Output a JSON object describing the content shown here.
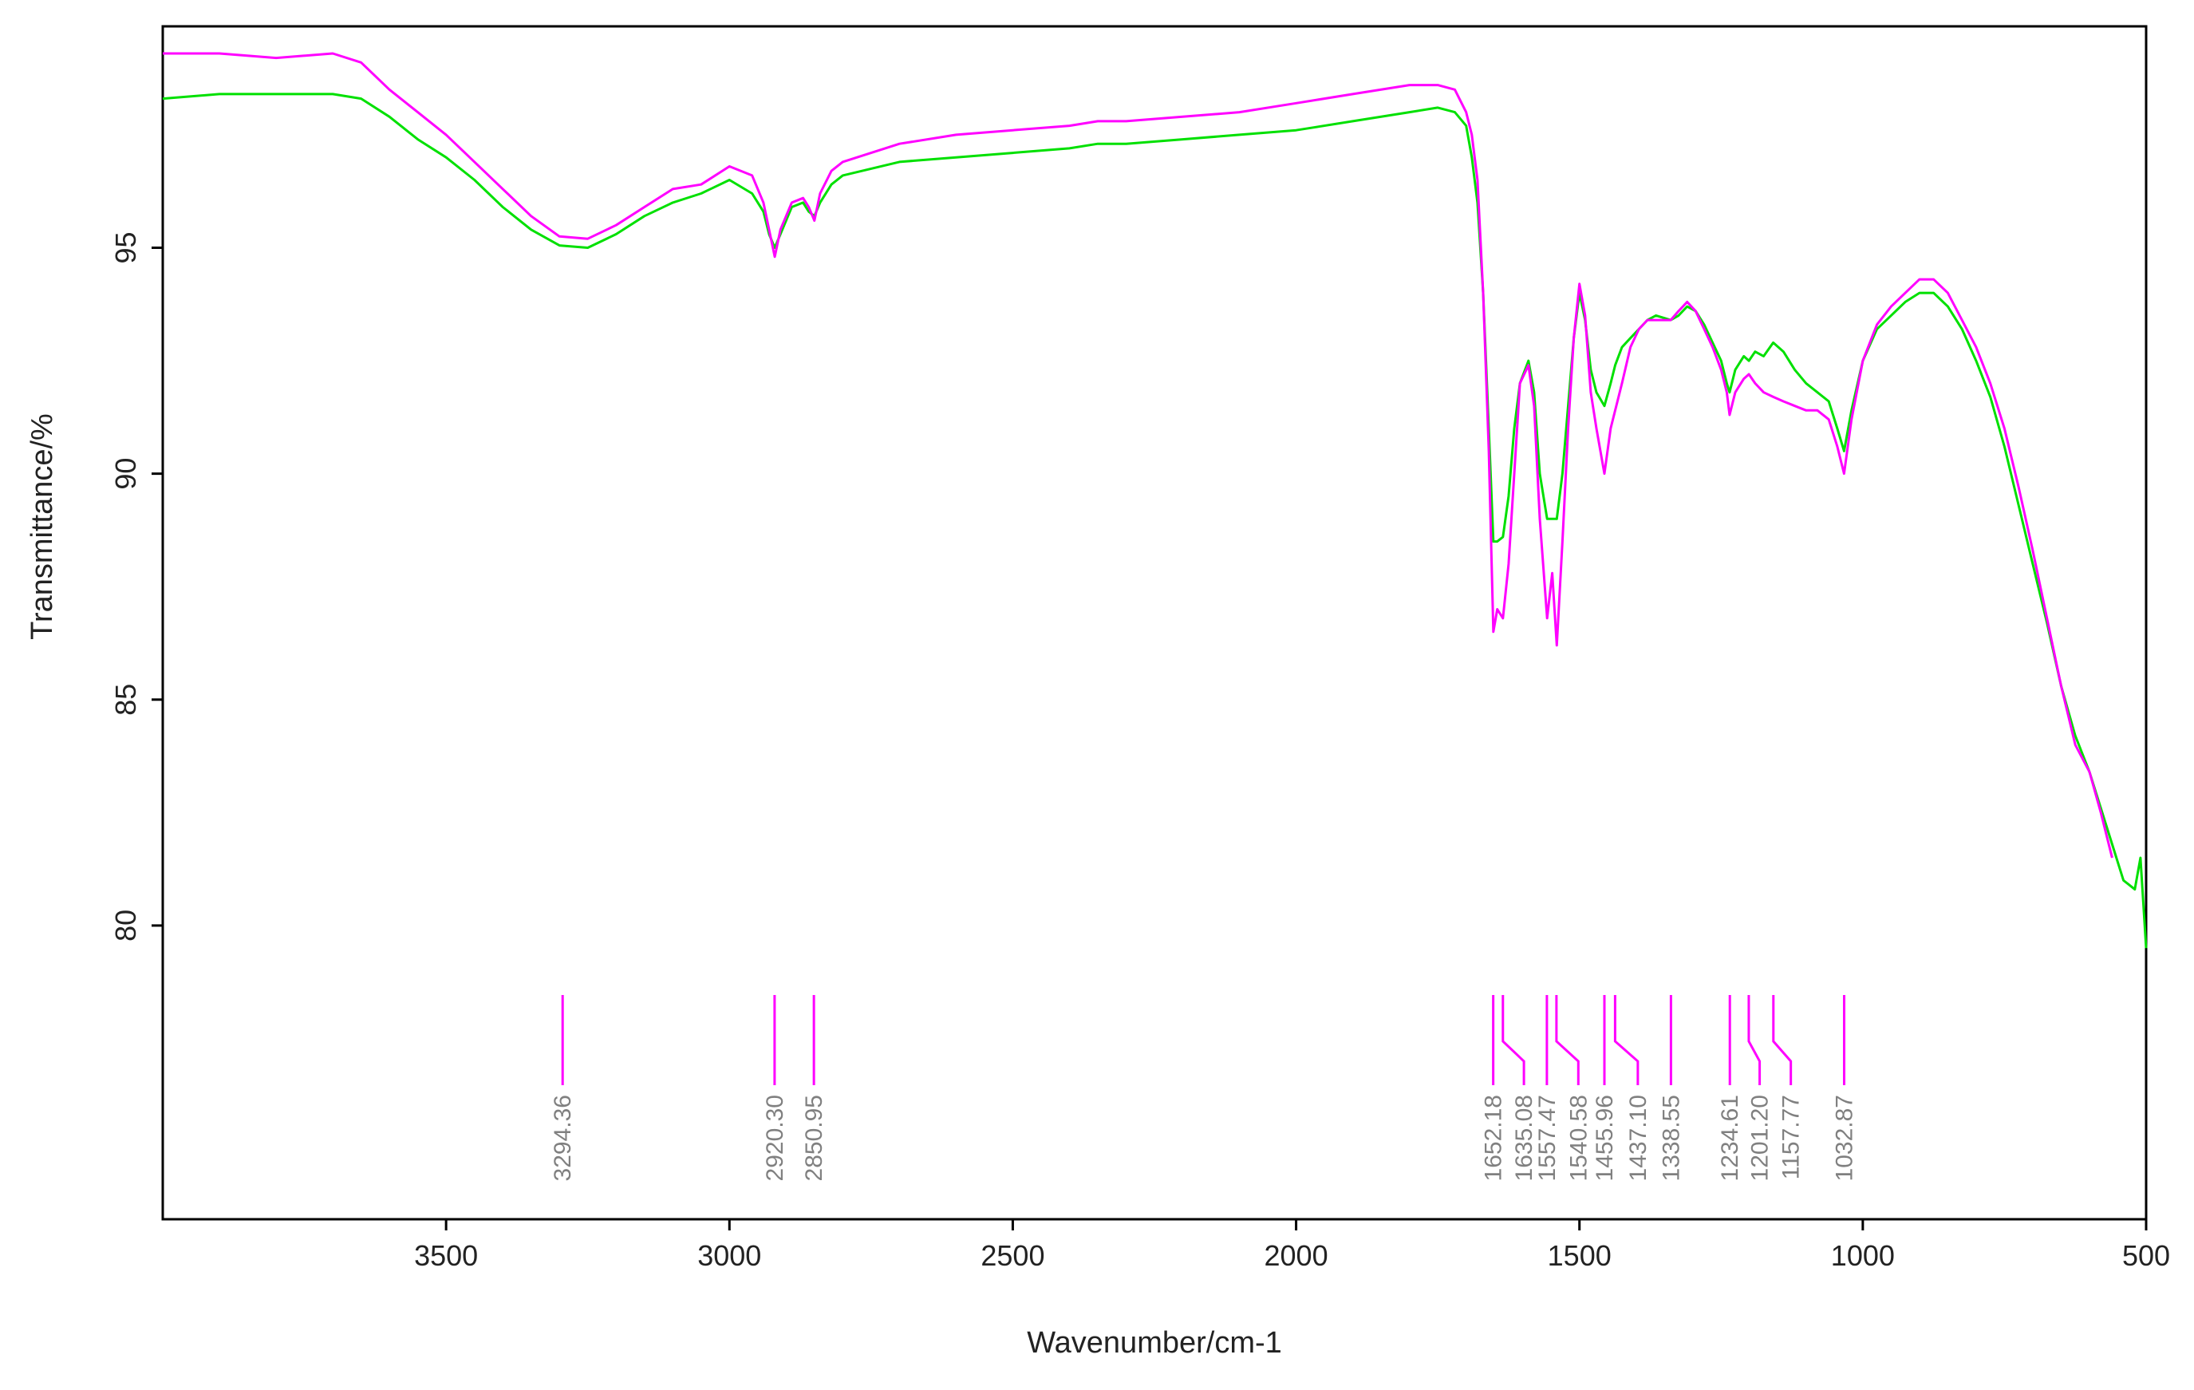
{
  "chart_data": {
    "type": "line",
    "title": "",
    "xlabel": "Wavenumber/cm-1",
    "ylabel": "Transmittance/%",
    "xlim": [
      4000,
      500
    ],
    "ylim": [
      73.5,
      99.9
    ],
    "x_ticks": [
      3500,
      3000,
      2500,
      2000,
      1500,
      1000,
      500
    ],
    "y_ticks": [
      80,
      85,
      90,
      95
    ],
    "grid": false,
    "legend": "none",
    "colors": {
      "series_a": "#ff00ff",
      "series_b": "#00e000",
      "peak_label": "#808080",
      "axis": "#000000"
    },
    "series": [
      {
        "points": [
          [
            4000,
            99.3
          ],
          [
            3900,
            99.3
          ],
          [
            3800,
            99.2
          ],
          [
            3700,
            99.3
          ],
          [
            3650,
            99.1
          ],
          [
            3600,
            98.5
          ],
          [
            3550,
            98.0
          ],
          [
            3500,
            97.5
          ],
          [
            3450,
            96.9
          ],
          [
            3400,
            96.3
          ],
          [
            3350,
            95.7
          ],
          [
            3300,
            95.25
          ],
          [
            3250,
            95.2
          ],
          [
            3200,
            95.5
          ],
          [
            3150,
            95.9
          ],
          [
            3100,
            96.3
          ],
          [
            3050,
            96.4
          ],
          [
            3000,
            96.8
          ],
          [
            2960,
            96.6
          ],
          [
            2940,
            96.0
          ],
          [
            2930,
            95.4
          ],
          [
            2920,
            94.8
          ],
          [
            2910,
            95.4
          ],
          [
            2890,
            96.0
          ],
          [
            2870,
            96.1
          ],
          [
            2860,
            95.9
          ],
          [
            2850,
            95.6
          ],
          [
            2840,
            96.2
          ],
          [
            2820,
            96.7
          ],
          [
            2800,
            96.9
          ],
          [
            2700,
            97.3
          ],
          [
            2600,
            97.5
          ],
          [
            2500,
            97.6
          ],
          [
            2400,
            97.7
          ],
          [
            2350,
            97.8
          ],
          [
            2300,
            97.8
          ],
          [
            2200,
            97.9
          ],
          [
            2100,
            98.0
          ],
          [
            2000,
            98.2
          ],
          [
            1900,
            98.4
          ],
          [
            1800,
            98.6
          ],
          [
            1750,
            98.6
          ],
          [
            1720,
            98.5
          ],
          [
            1700,
            98.0
          ],
          [
            1690,
            97.5
          ],
          [
            1680,
            96.5
          ],
          [
            1670,
            94.0
          ],
          [
            1660,
            90.5
          ],
          [
            1652,
            86.5
          ],
          [
            1645,
            87.0
          ],
          [
            1635,
            86.8
          ],
          [
            1625,
            88.0
          ],
          [
            1615,
            90.0
          ],
          [
            1605,
            92.0
          ],
          [
            1590,
            92.4
          ],
          [
            1580,
            91.5
          ],
          [
            1570,
            89.0
          ],
          [
            1557,
            86.8
          ],
          [
            1548,
            87.8
          ],
          [
            1540,
            86.2
          ],
          [
            1530,
            88.5
          ],
          [
            1520,
            91.0
          ],
          [
            1510,
            93.0
          ],
          [
            1500,
            94.2
          ],
          [
            1490,
            93.5
          ],
          [
            1480,
            91.8
          ],
          [
            1470,
            91.0
          ],
          [
            1456,
            90.0
          ],
          [
            1445,
            91.0
          ],
          [
            1437,
            91.4
          ],
          [
            1425,
            92.0
          ],
          [
            1410,
            92.8
          ],
          [
            1395,
            93.2
          ],
          [
            1380,
            93.4
          ],
          [
            1365,
            93.4
          ],
          [
            1339,
            93.4
          ],
          [
            1325,
            93.6
          ],
          [
            1310,
            93.8
          ],
          [
            1295,
            93.6
          ],
          [
            1280,
            93.2
          ],
          [
            1265,
            92.8
          ],
          [
            1250,
            92.3
          ],
          [
            1240,
            91.8
          ],
          [
            1235,
            91.3
          ],
          [
            1225,
            91.8
          ],
          [
            1210,
            92.1
          ],
          [
            1201,
            92.2
          ],
          [
            1190,
            92.0
          ],
          [
            1175,
            91.8
          ],
          [
            1158,
            91.7
          ],
          [
            1140,
            91.6
          ],
          [
            1120,
            91.5
          ],
          [
            1100,
            91.4
          ],
          [
            1080,
            91.4
          ],
          [
            1060,
            91.2
          ],
          [
            1045,
            90.6
          ],
          [
            1033,
            90.0
          ],
          [
            1020,
            91.2
          ],
          [
            1000,
            92.5
          ],
          [
            975,
            93.3
          ],
          [
            950,
            93.7
          ],
          [
            925,
            94.0
          ],
          [
            900,
            94.3
          ],
          [
            875,
            94.3
          ],
          [
            850,
            94.0
          ],
          [
            825,
            93.4
          ],
          [
            800,
            92.8
          ],
          [
            775,
            92.0
          ],
          [
            750,
            91.0
          ],
          [
            725,
            89.7
          ],
          [
            700,
            88.3
          ],
          [
            675,
            86.8
          ],
          [
            650,
            85.3
          ],
          [
            625,
            84.0
          ],
          [
            600,
            83.4
          ],
          [
            580,
            82.5
          ],
          [
            560,
            81.5
          ]
        ]
      },
      {
        "points": [
          [
            4000,
            98.3
          ],
          [
            3900,
            98.4
          ],
          [
            3800,
            98.4
          ],
          [
            3700,
            98.4
          ],
          [
            3650,
            98.3
          ],
          [
            3600,
            97.9
          ],
          [
            3550,
            97.4
          ],
          [
            3500,
            97.0
          ],
          [
            3450,
            96.5
          ],
          [
            3400,
            95.9
          ],
          [
            3350,
            95.4
          ],
          [
            3300,
            95.05
          ],
          [
            3250,
            95.0
          ],
          [
            3200,
            95.3
          ],
          [
            3150,
            95.7
          ],
          [
            3100,
            96.0
          ],
          [
            3050,
            96.2
          ],
          [
            3000,
            96.5
          ],
          [
            2960,
            96.2
          ],
          [
            2940,
            95.8
          ],
          [
            2930,
            95.3
          ],
          [
            2920,
            95.0
          ],
          [
            2910,
            95.3
          ],
          [
            2890,
            95.9
          ],
          [
            2870,
            96.0
          ],
          [
            2860,
            95.8
          ],
          [
            2850,
            95.7
          ],
          [
            2840,
            96.0
          ],
          [
            2820,
            96.4
          ],
          [
            2800,
            96.6
          ],
          [
            2700,
            96.9
          ],
          [
            2600,
            97.0
          ],
          [
            2500,
            97.1
          ],
          [
            2400,
            97.2
          ],
          [
            2350,
            97.3
          ],
          [
            2300,
            97.3
          ],
          [
            2200,
            97.4
          ],
          [
            2100,
            97.5
          ],
          [
            2000,
            97.6
          ],
          [
            1900,
            97.8
          ],
          [
            1800,
            98.0
          ],
          [
            1750,
            98.1
          ],
          [
            1720,
            98.0
          ],
          [
            1700,
            97.7
          ],
          [
            1690,
            97.0
          ],
          [
            1680,
            96.0
          ],
          [
            1670,
            94.0
          ],
          [
            1660,
            91.0
          ],
          [
            1652,
            88.5
          ],
          [
            1645,
            88.5
          ],
          [
            1635,
            88.6
          ],
          [
            1625,
            89.5
          ],
          [
            1615,
            91.0
          ],
          [
            1605,
            92.0
          ],
          [
            1590,
            92.5
          ],
          [
            1580,
            91.8
          ],
          [
            1570,
            90.0
          ],
          [
            1557,
            89.0
          ],
          [
            1548,
            89.0
          ],
          [
            1540,
            89.0
          ],
          [
            1530,
            90.0
          ],
          [
            1520,
            91.5
          ],
          [
            1510,
            93.0
          ],
          [
            1500,
            94.0
          ],
          [
            1490,
            93.4
          ],
          [
            1480,
            92.3
          ],
          [
            1470,
            91.8
          ],
          [
            1456,
            91.5
          ],
          [
            1445,
            92.0
          ],
          [
            1437,
            92.4
          ],
          [
            1425,
            92.8
          ],
          [
            1410,
            93.0
          ],
          [
            1395,
            93.2
          ],
          [
            1380,
            93.4
          ],
          [
            1365,
            93.5
          ],
          [
            1339,
            93.4
          ],
          [
            1325,
            93.5
          ],
          [
            1310,
            93.7
          ],
          [
            1295,
            93.6
          ],
          [
            1280,
            93.3
          ],
          [
            1265,
            92.9
          ],
          [
            1250,
            92.5
          ],
          [
            1240,
            92.0
          ],
          [
            1235,
            91.8
          ],
          [
            1225,
            92.3
          ],
          [
            1210,
            92.6
          ],
          [
            1201,
            92.5
          ],
          [
            1190,
            92.7
          ],
          [
            1175,
            92.6
          ],
          [
            1158,
            92.9
          ],
          [
            1140,
            92.7
          ],
          [
            1120,
            92.3
          ],
          [
            1100,
            92.0
          ],
          [
            1080,
            91.8
          ],
          [
            1060,
            91.6
          ],
          [
            1045,
            91.0
          ],
          [
            1033,
            90.5
          ],
          [
            1020,
            91.4
          ],
          [
            1000,
            92.5
          ],
          [
            975,
            93.2
          ],
          [
            950,
            93.5
          ],
          [
            925,
            93.8
          ],
          [
            900,
            94.0
          ],
          [
            875,
            94.0
          ],
          [
            850,
            93.7
          ],
          [
            825,
            93.2
          ],
          [
            800,
            92.5
          ],
          [
            775,
            91.7
          ],
          [
            750,
            90.6
          ],
          [
            725,
            89.3
          ],
          [
            700,
            88.0
          ],
          [
            675,
            86.7
          ],
          [
            650,
            85.3
          ],
          [
            625,
            84.2
          ],
          [
            600,
            83.4
          ],
          [
            580,
            82.6
          ],
          [
            560,
            81.8
          ],
          [
            540,
            81.0
          ],
          [
            520,
            80.8
          ],
          [
            510,
            81.5
          ],
          [
            500,
            79.5
          ]
        ]
      }
    ],
    "peaks": [
      {
        "x": 3294.36,
        "label": "3294.36",
        "label_x": 3294.36
      },
      {
        "x": 2920.3,
        "label": "2920.30",
        "label_x": 2920.3
      },
      {
        "x": 2850.95,
        "label": "2850.95",
        "label_x": 2850.95
      },
      {
        "x": 1652.18,
        "label": "1652.18",
        "label_x": 1652.18
      },
      {
        "x": 1635.08,
        "label": "1635.08",
        "label_x": 1598.0
      },
      {
        "x": 1557.47,
        "label": "1557.47",
        "label_x": 1557.47
      },
      {
        "x": 1540.58,
        "label": "1540.58",
        "label_x": 1502.0
      },
      {
        "x": 1455.96,
        "label": "1455.96",
        "label_x": 1455.96
      },
      {
        "x": 1437.1,
        "label": "1437.10",
        "label_x": 1397.0
      },
      {
        "x": 1338.55,
        "label": "1338.55",
        "label_x": 1338.55
      },
      {
        "x": 1234.61,
        "label": "1234.61",
        "label_x": 1234.61
      },
      {
        "x": 1201.2,
        "label": "1201.20",
        "label_x": 1182.0
      },
      {
        "x": 1157.77,
        "label": "1157.77",
        "label_x": 1127.0
      },
      {
        "x": 1032.87,
        "label": "1032.87",
        "label_x": 1032.87
      }
    ]
  }
}
